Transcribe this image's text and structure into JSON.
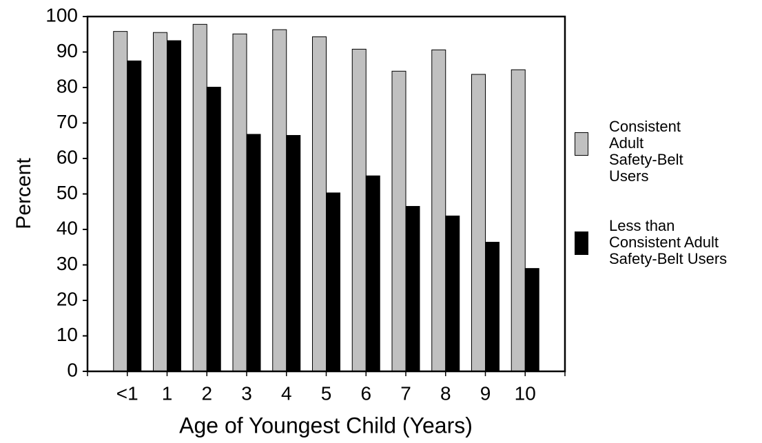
{
  "chart_data": {
    "type": "bar",
    "x_label": "Age of Youngest Child (Years)",
    "y_label": "Percent",
    "categories": [
      "<1",
      "1",
      "2",
      "3",
      "4",
      "5",
      "6",
      "7",
      "8",
      "9",
      "10"
    ],
    "series": [
      {
        "name": "Consistent Adult Safety-Belt Users",
        "color": "#c0c0c0",
        "values": [
          95.8,
          95.5,
          97.8,
          95.1,
          96.3,
          94.3,
          90.8,
          84.6,
          90.6,
          83.7,
          85.0
        ]
      },
      {
        "name": "Less than Consistent Adult Safety-Belt Users",
        "color": "#000000",
        "values": [
          87.5,
          93.2,
          80.1,
          66.8,
          66.5,
          50.3,
          55.1,
          46.5,
          43.8,
          36.4,
          29.0
        ]
      }
    ],
    "ylim": [
      0,
      100
    ],
    "yticks": [
      0,
      10,
      20,
      30,
      40,
      50,
      60,
      70,
      80,
      90,
      100
    ],
    "legend": "right"
  }
}
